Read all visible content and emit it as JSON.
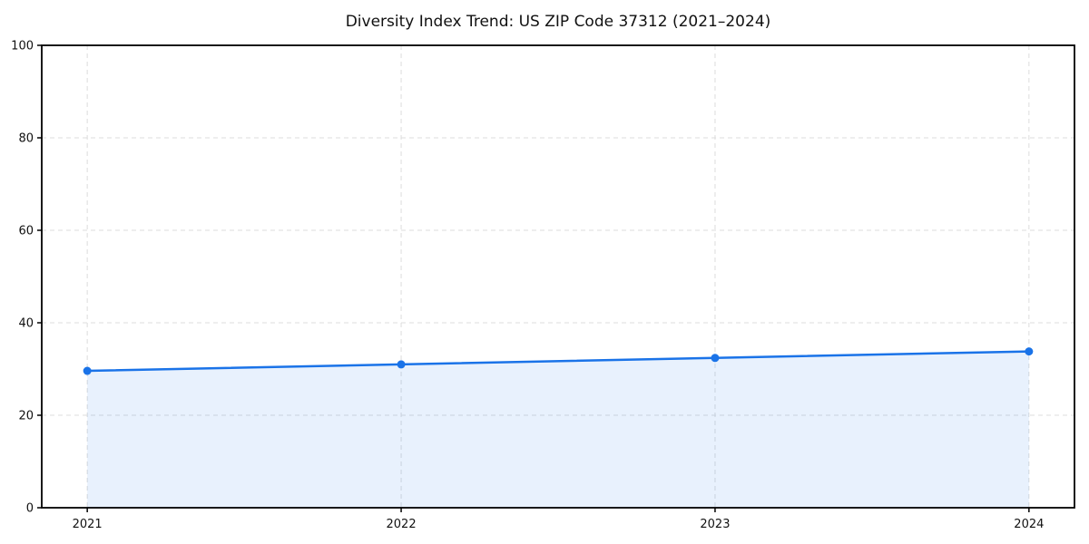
{
  "chart_data": {
    "type": "area",
    "title": "Diversity Index Trend: US ZIP Code 37312 (2021–2024)",
    "series_name": "Diversity Index",
    "x": [
      2021,
      2022,
      2023,
      2024
    ],
    "values": [
      29.6,
      31.0,
      32.4,
      33.8
    ],
    "xticks": [
      "2021",
      "2022",
      "2023",
      "2024"
    ],
    "xtick_values": [
      2021,
      2022,
      2023,
      2024
    ],
    "yticks": [
      "0",
      "20",
      "40",
      "60",
      "80",
      "100"
    ],
    "ytick_values": [
      0,
      20,
      40,
      60,
      80,
      100
    ],
    "xlabel": "",
    "ylabel": "",
    "xlim": [
      2020.855,
      2024.145
    ],
    "ylim": [
      0,
      100
    ],
    "grid": true,
    "legend": false,
    "colors": {
      "line": "#1a73e8",
      "marker": "#1a73e8",
      "fill": "#1a73e8",
      "fill_opacity": 0.1,
      "grid": "#dcdcdc",
      "spine": "#000000",
      "text": "#111111"
    }
  }
}
